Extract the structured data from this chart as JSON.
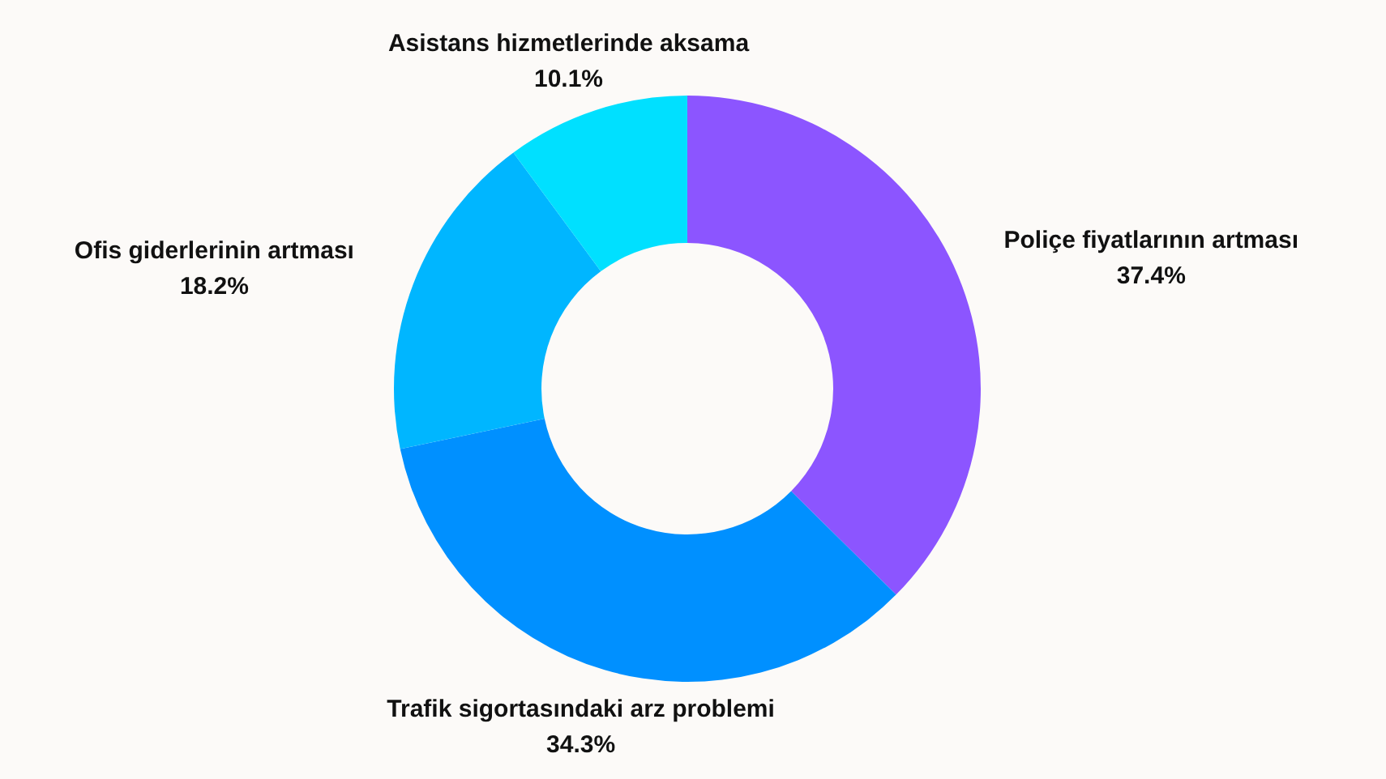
{
  "chart_data": {
    "type": "donut",
    "categories": [
      "Poliçe fiyatlarının artması",
      "Trafik sigortasındaki arz problemi",
      "Ofis giderlerinin artması",
      "Asistans hizmetlerinde aksama"
    ],
    "values": [
      37.4,
      34.3,
      18.2,
      10.1
    ],
    "colors": [
      "#8c55ff",
      "#0090ff",
      "#00b6ff",
      "#00e0ff"
    ],
    "value_labels": [
      "37.4%",
      "34.3%",
      "18.2%",
      "10.1%"
    ]
  }
}
